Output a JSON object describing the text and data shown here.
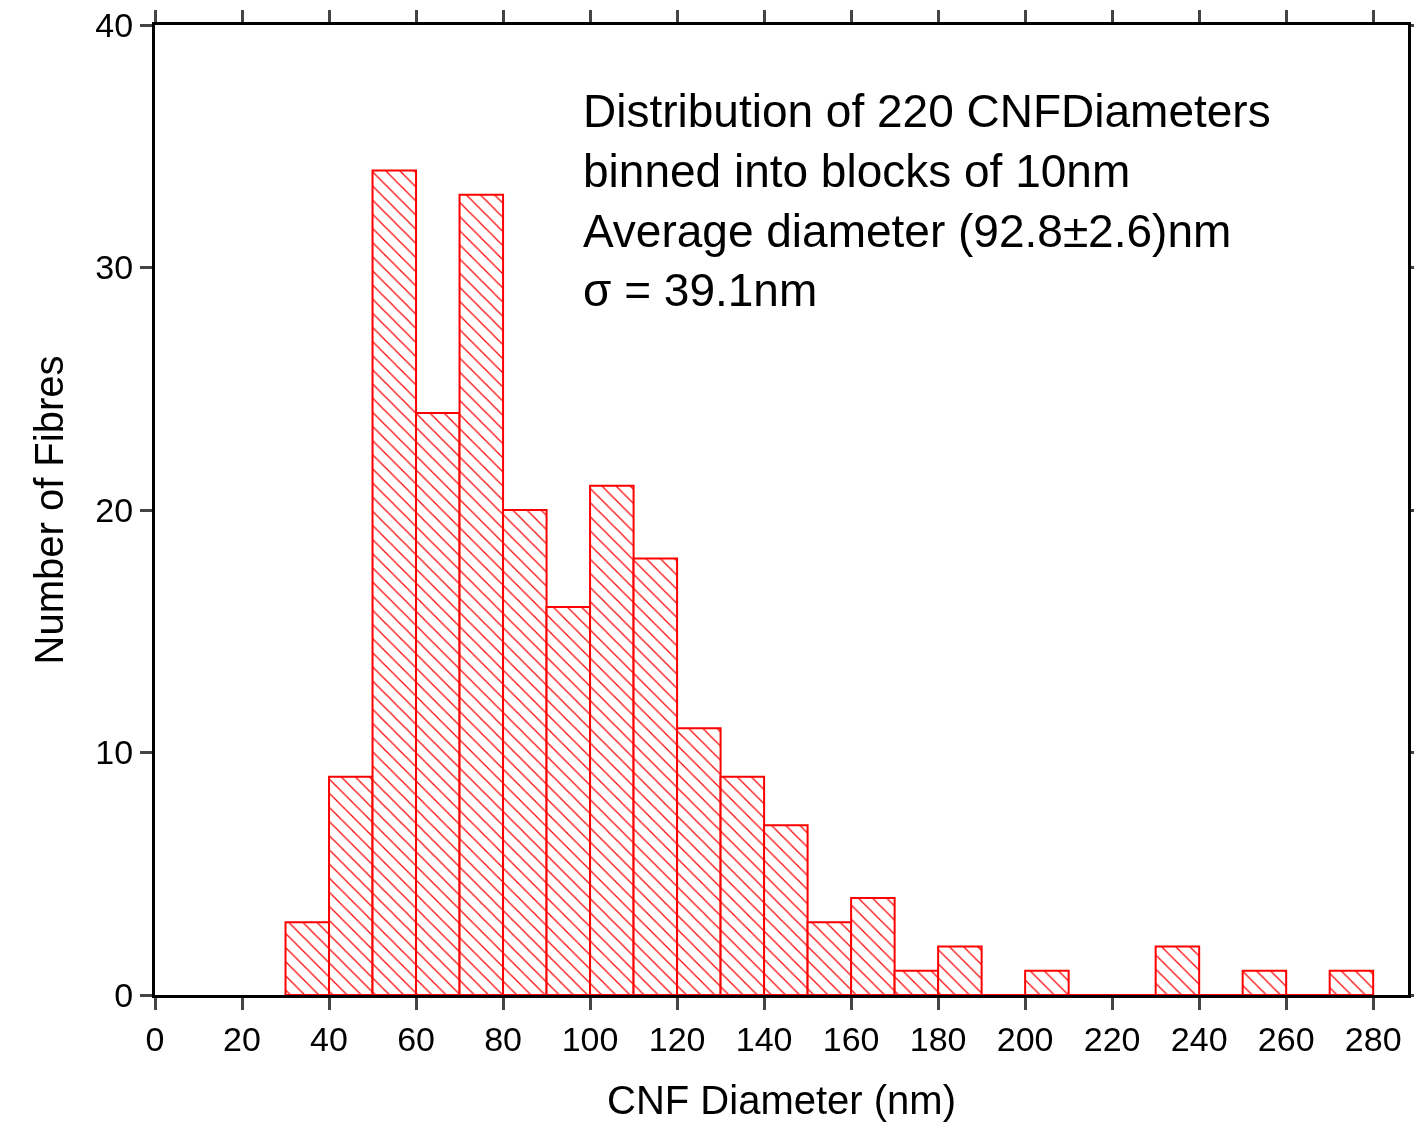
{
  "chart_data": {
    "type": "histogram",
    "xlabel": "CNF Diameter (nm)",
    "ylabel": "Number of Fibres",
    "annotations": [
      "Distribution of 220 CNFDiameters",
      "binned into blocks of 10nm",
      "Average diameter (92.8±2.6)nm",
      "σ = 39.1nm"
    ],
    "bins": [
      30,
      40,
      50,
      60,
      70,
      80,
      90,
      100,
      110,
      120,
      130,
      140,
      150,
      160,
      170,
      180,
      190,
      200,
      210,
      220,
      230,
      240,
      250,
      260,
      270,
      280
    ],
    "values": [
      3,
      9,
      34,
      24,
      33,
      20,
      16,
      21,
      18,
      11,
      9,
      7,
      3,
      4,
      1,
      2,
      0,
      1,
      0,
      0,
      2,
      0,
      1,
      0,
      1
    ],
    "color": "#ff0000",
    "xlim": [
      0,
      288
    ],
    "xticks": [
      0,
      20,
      40,
      60,
      80,
      100,
      120,
      140,
      160,
      180,
      200,
      220,
      240,
      260,
      280
    ],
    "ylim": [
      0,
      40
    ],
    "yticks": [
      0,
      10,
      20,
      30,
      40
    ],
    "grid": false
  }
}
